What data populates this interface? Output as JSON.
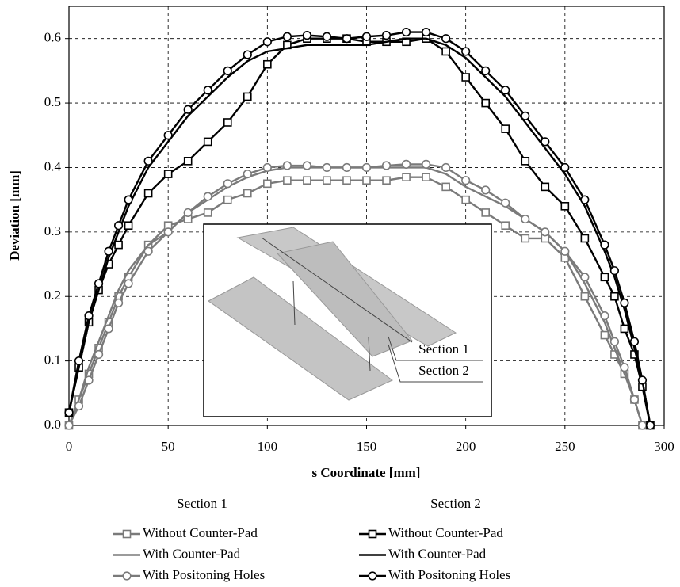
{
  "chart_data": {
    "type": "line",
    "x_label": "s Coordinate [mm]",
    "y_label": "Deviation [mm]",
    "x": [
      0,
      5,
      10,
      15,
      20,
      25,
      30,
      40,
      50,
      60,
      70,
      80,
      90,
      100,
      110,
      120,
      130,
      140,
      150,
      160,
      170,
      180,
      190,
      200,
      210,
      220,
      230,
      240,
      250,
      260,
      270,
      275,
      280,
      285,
      289,
      293
    ],
    "xlim": [
      0,
      300
    ],
    "xticks": [
      0,
      50,
      100,
      150,
      200,
      250,
      300
    ],
    "ylim": [
      0,
      0.65
    ],
    "yticks": [
      {
        "value": 0,
        "label": "0.0"
      },
      {
        "value": 0.1,
        "label": "0.1"
      },
      {
        "value": 0.2,
        "label": "0.2"
      },
      {
        "value": 0.3,
        "label": "0.3"
      },
      {
        "value": 0.4,
        "label": "0.4"
      },
      {
        "value": 0.5,
        "label": "0.5"
      },
      {
        "value": 0.6,
        "label": "0.6"
      }
    ],
    "grid": true,
    "legend_columns": [
      "Section 1",
      "Section 2"
    ],
    "series": [
      {
        "name": "Without Counter-Pad",
        "color": "#7a7a7a",
        "marker": "square",
        "column": 0,
        "values": [
          0,
          0.04,
          0.08,
          0.12,
          0.16,
          0.2,
          0.23,
          0.28,
          0.31,
          0.32,
          0.33,
          0.35,
          0.36,
          0.375,
          0.38,
          0.38,
          0.38,
          0.38,
          0.38,
          0.38,
          0.385,
          0.385,
          0.37,
          0.35,
          0.33,
          0.31,
          0.29,
          0.29,
          0.26,
          0.2,
          0.14,
          0.11,
          0.08,
          0.04,
          0,
          null
        ]
      },
      {
        "name": "With Counter-Pad",
        "color": "#7a7a7a",
        "marker": "none",
        "column": 0,
        "values": [
          0,
          0.04,
          0.09,
          0.13,
          0.17,
          0.21,
          0.24,
          0.28,
          0.3,
          0.33,
          0.35,
          0.37,
          0.385,
          0.395,
          0.4,
          0.4,
          0.4,
          0.4,
          0.4,
          0.4,
          0.4,
          0.4,
          0.39,
          0.37,
          0.355,
          0.34,
          0.32,
          0.3,
          0.27,
          0.22,
          0.16,
          0.12,
          0.08,
          0.04,
          0,
          null
        ]
      },
      {
        "name": "With Positoning Holes",
        "color": "#7a7a7a",
        "marker": "circle",
        "column": 0,
        "values": [
          0,
          0.03,
          0.07,
          0.11,
          0.15,
          0.19,
          0.22,
          0.27,
          0.3,
          0.33,
          0.355,
          0.375,
          0.39,
          0.4,
          0.403,
          0.403,
          0.4,
          0.4,
          0.4,
          0.403,
          0.405,
          0.405,
          0.4,
          0.38,
          0.365,
          0.345,
          0.32,
          0.3,
          0.27,
          0.23,
          0.17,
          0.13,
          0.09,
          0.04,
          0,
          null
        ]
      },
      {
        "name": "Without Counter-Pad",
        "color": "#000000",
        "marker": "square",
        "column": 1,
        "values": [
          0.02,
          0.09,
          0.16,
          0.21,
          0.25,
          0.28,
          0.31,
          0.36,
          0.39,
          0.41,
          0.44,
          0.47,
          0.51,
          0.56,
          0.59,
          0.6,
          0.6,
          0.6,
          0.595,
          0.595,
          0.595,
          0.6,
          0.58,
          0.54,
          0.5,
          0.46,
          0.41,
          0.37,
          0.34,
          0.29,
          0.23,
          0.2,
          0.15,
          0.11,
          0.06,
          0
        ]
      },
      {
        "name": "With Counter-Pad",
        "color": "#000000",
        "marker": "none",
        "column": 1,
        "values": [
          0.02,
          0.09,
          0.16,
          0.21,
          0.26,
          0.3,
          0.34,
          0.4,
          0.44,
          0.48,
          0.51,
          0.54,
          0.565,
          0.58,
          0.585,
          0.59,
          0.59,
          0.59,
          0.59,
          0.595,
          0.6,
          0.6,
          0.59,
          0.57,
          0.54,
          0.51,
          0.47,
          0.43,
          0.39,
          0.34,
          0.27,
          0.23,
          0.18,
          0.12,
          0.07,
          0
        ]
      },
      {
        "name": "With Positoning Holes",
        "color": "#000000",
        "marker": "circle",
        "column": 1,
        "values": [
          0.02,
          0.1,
          0.17,
          0.22,
          0.27,
          0.31,
          0.35,
          0.41,
          0.45,
          0.49,
          0.52,
          0.55,
          0.575,
          0.595,
          0.603,
          0.605,
          0.603,
          0.6,
          0.603,
          0.605,
          0.61,
          0.61,
          0.6,
          0.58,
          0.55,
          0.52,
          0.48,
          0.44,
          0.4,
          0.35,
          0.28,
          0.24,
          0.19,
          0.13,
          0.07,
          0
        ]
      }
    ],
    "inset": {
      "labels": [
        "Section 1",
        "Section 2"
      ]
    }
  }
}
